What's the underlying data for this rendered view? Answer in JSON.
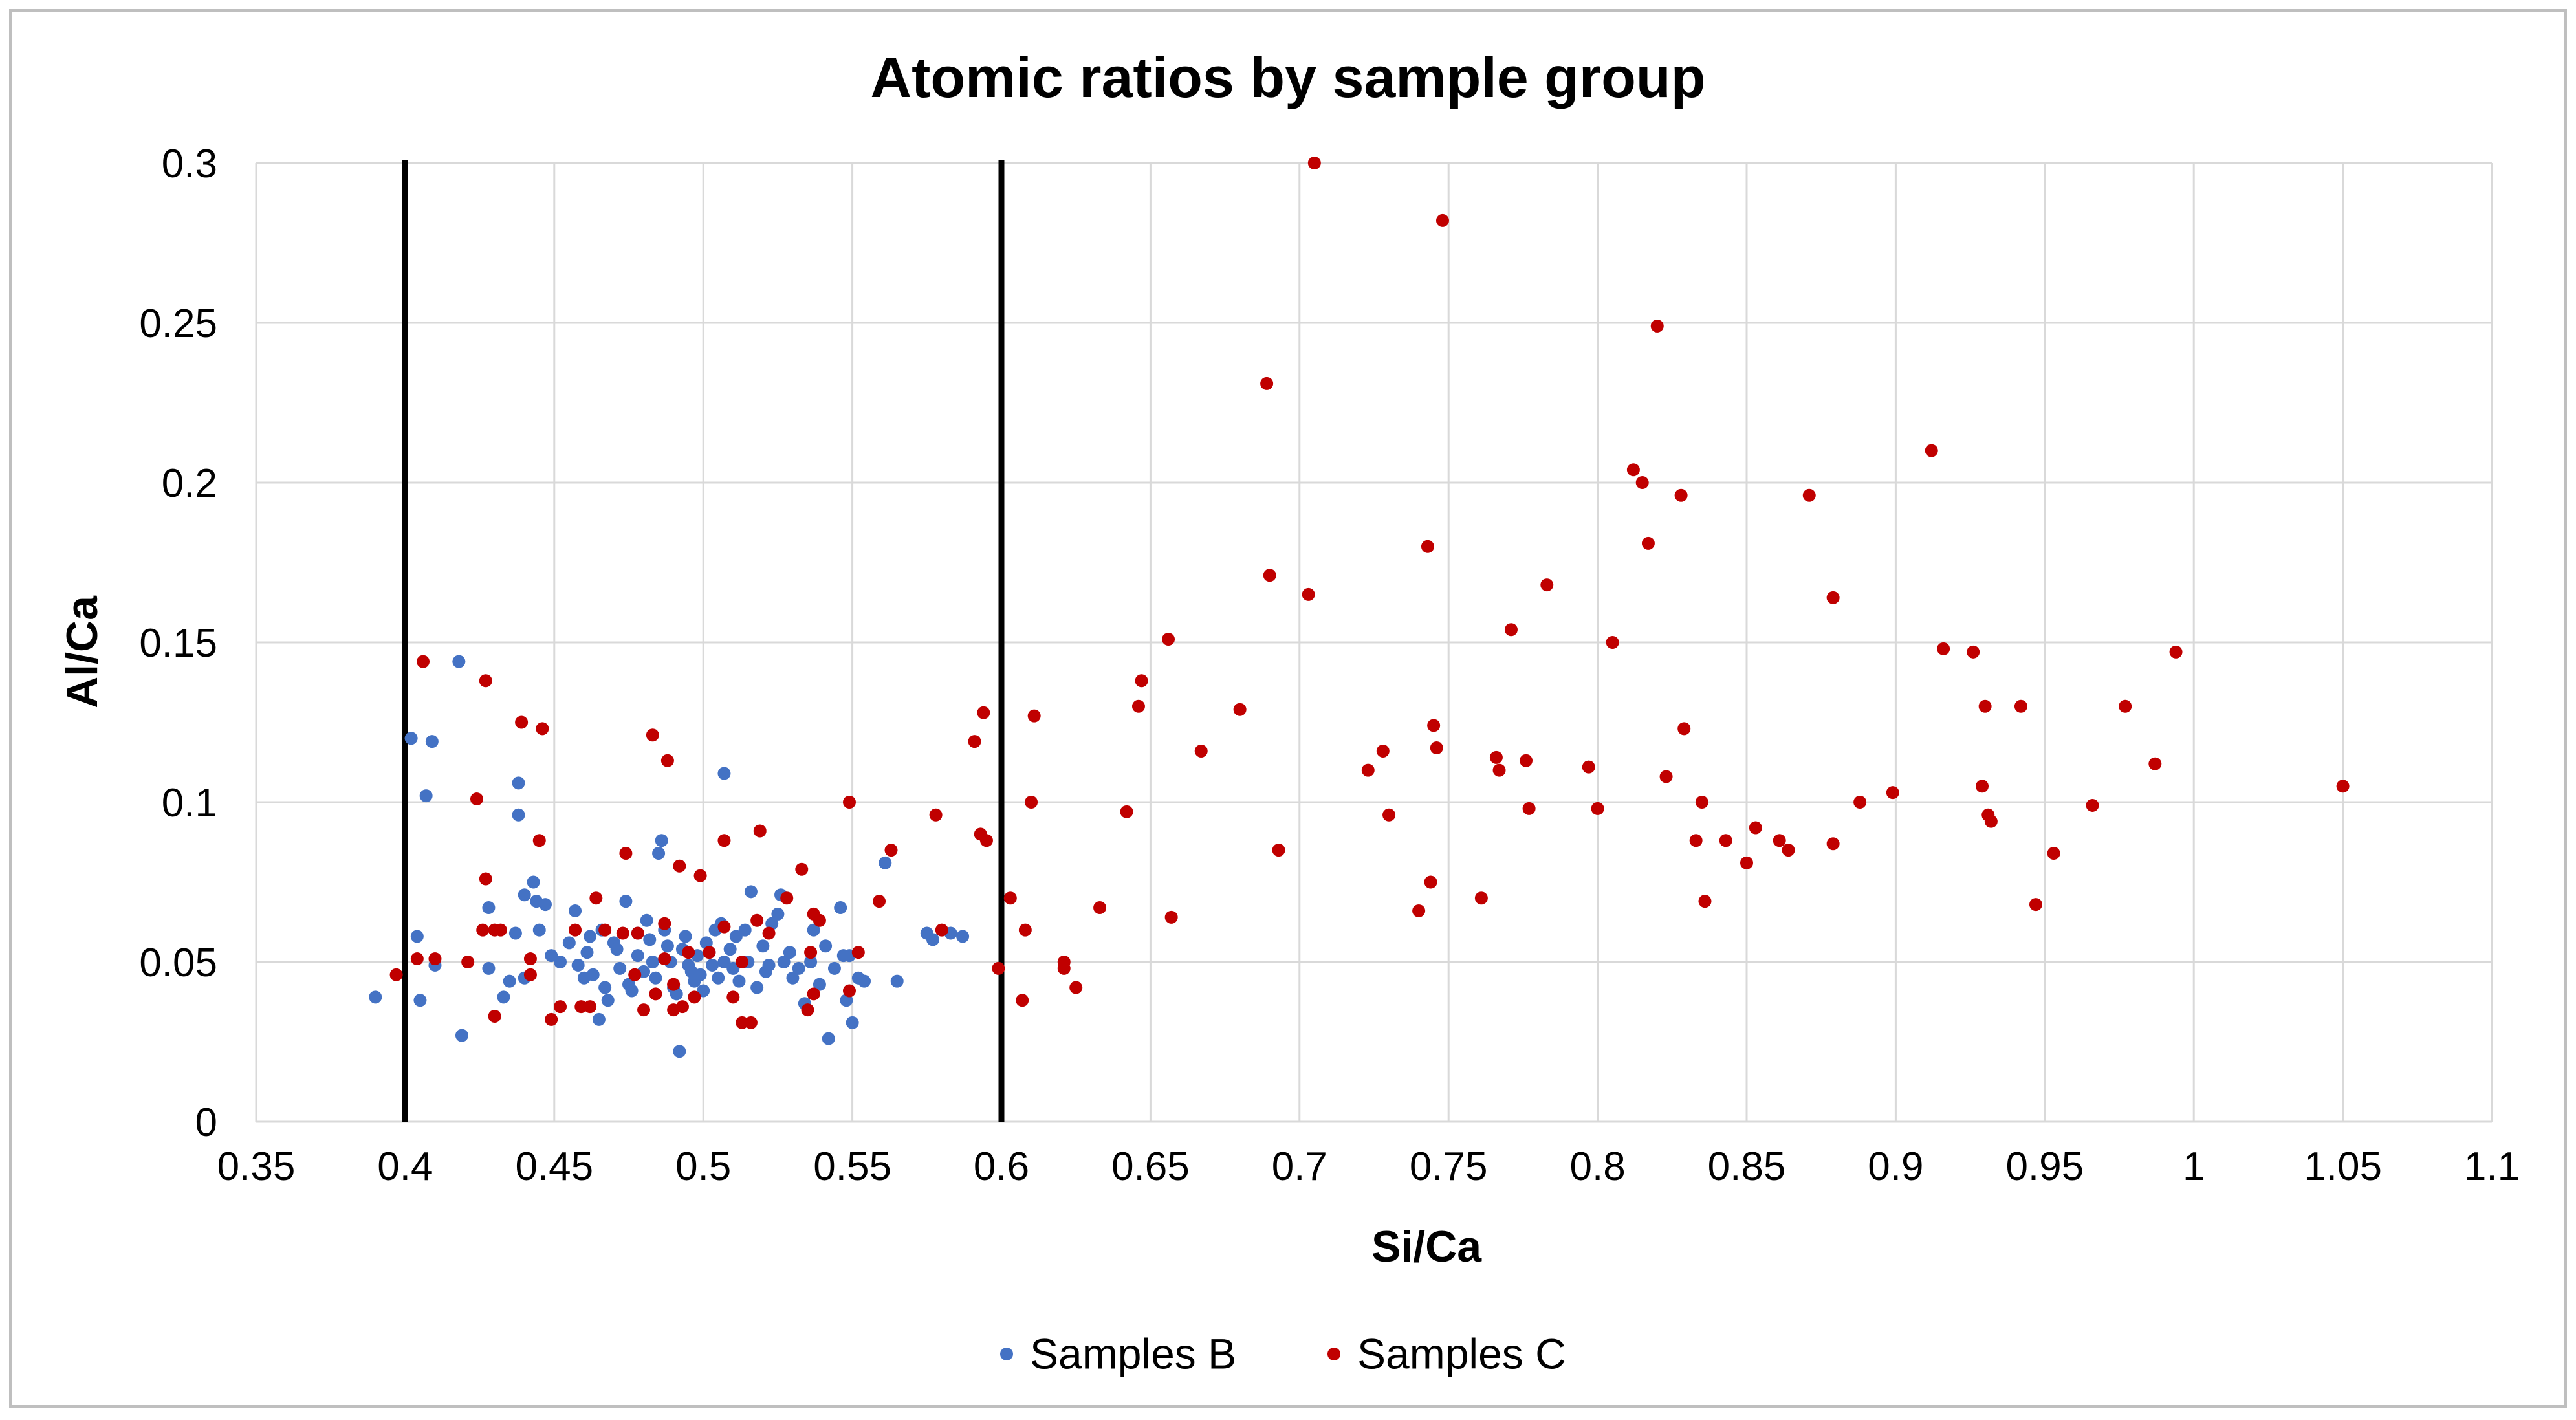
{
  "chart_data": {
    "type": "scatter",
    "title": "Atomic ratios by sample group",
    "xlabel": "Si/Ca",
    "ylabel": "Al/Ca",
    "xlim": [
      0.35,
      1.1
    ],
    "ylim": [
      0,
      0.3
    ],
    "x_ticks": [
      "0.35",
      "0.4",
      "0.45",
      "0.5",
      "0.55",
      "0.6",
      "0.65",
      "0.7",
      "0.75",
      "0.8",
      "0.85",
      "0.9",
      "0.95",
      "1",
      "1.05",
      "1.1"
    ],
    "x_tick_values": [
      0.35,
      0.4,
      0.45,
      0.5,
      0.55,
      0.6,
      0.65,
      0.7,
      0.75,
      0.8,
      0.85,
      0.9,
      0.95,
      1,
      1.05,
      1.1
    ],
    "y_ticks": [
      "0",
      "0.05",
      "0.1",
      "0.15",
      "0.2",
      "0.25",
      "0.3"
    ],
    "y_tick_values": [
      0,
      0.05,
      0.1,
      0.15,
      0.2,
      0.25,
      0.3
    ],
    "grid": true,
    "legend_position": "bottom",
    "reference_lines_x": [
      0.4,
      0.6
    ],
    "series": [
      {
        "name": "Samples B",
        "color": "#4472C4",
        "points": [
          [
            0.39,
            0.039
          ],
          [
            0.402,
            0.12
          ],
          [
            0.404,
            0.058
          ],
          [
            0.405,
            0.038
          ],
          [
            0.407,
            0.102
          ],
          [
            0.409,
            0.119
          ],
          [
            0.41,
            0.049
          ],
          [
            0.418,
            0.144
          ],
          [
            0.419,
            0.027
          ],
          [
            0.428,
            0.067
          ],
          [
            0.428,
            0.048
          ],
          [
            0.433,
            0.039
          ],
          [
            0.435,
            0.044
          ],
          [
            0.437,
            0.059
          ],
          [
            0.438,
            0.106
          ],
          [
            0.438,
            0.096
          ],
          [
            0.44,
            0.071
          ],
          [
            0.44,
            0.045
          ],
          [
            0.443,
            0.075
          ],
          [
            0.444,
            0.069
          ],
          [
            0.445,
            0.06
          ],
          [
            0.447,
            0.068
          ],
          [
            0.449,
            0.052
          ],
          [
            0.452,
            0.05
          ],
          [
            0.455,
            0.056
          ],
          [
            0.457,
            0.066
          ],
          [
            0.458,
            0.049
          ],
          [
            0.46,
            0.045
          ],
          [
            0.461,
            0.053
          ],
          [
            0.462,
            0.058
          ],
          [
            0.463,
            0.046
          ],
          [
            0.465,
            0.032
          ],
          [
            0.466,
            0.06
          ],
          [
            0.467,
            0.042
          ],
          [
            0.468,
            0.038
          ],
          [
            0.47,
            0.056
          ],
          [
            0.471,
            0.054
          ],
          [
            0.472,
            0.048
          ],
          [
            0.474,
            0.069
          ],
          [
            0.475,
            0.043
          ],
          [
            0.476,
            0.041
          ],
          [
            0.478,
            0.059
          ],
          [
            0.478,
            0.052
          ],
          [
            0.48,
            0.047
          ],
          [
            0.481,
            0.063
          ],
          [
            0.482,
            0.057
          ],
          [
            0.483,
            0.05
          ],
          [
            0.484,
            0.045
          ],
          [
            0.485,
            0.084
          ],
          [
            0.486,
            0.088
          ],
          [
            0.487,
            0.06
          ],
          [
            0.488,
            0.055
          ],
          [
            0.489,
            0.05
          ],
          [
            0.49,
            0.042
          ],
          [
            0.491,
            0.04
          ],
          [
            0.492,
            0.022
          ],
          [
            0.493,
            0.054
          ],
          [
            0.494,
            0.058
          ],
          [
            0.495,
            0.049
          ],
          [
            0.496,
            0.047
          ],
          [
            0.497,
            0.044
          ],
          [
            0.498,
            0.052
          ],
          [
            0.499,
            0.046
          ],
          [
            0.5,
            0.041
          ],
          [
            0.501,
            0.056
          ],
          [
            0.502,
            0.053
          ],
          [
            0.503,
            0.049
          ],
          [
            0.504,
            0.06
          ],
          [
            0.505,
            0.045
          ],
          [
            0.506,
            0.062
          ],
          [
            0.507,
            0.109
          ],
          [
            0.507,
            0.05
          ],
          [
            0.509,
            0.054
          ],
          [
            0.51,
            0.048
          ],
          [
            0.511,
            0.058
          ],
          [
            0.512,
            0.044
          ],
          [
            0.514,
            0.06
          ],
          [
            0.515,
            0.05
          ],
          [
            0.516,
            0.072
          ],
          [
            0.518,
            0.042
          ],
          [
            0.52,
            0.055
          ],
          [
            0.521,
            0.047
          ],
          [
            0.522,
            0.049
          ],
          [
            0.523,
            0.062
          ],
          [
            0.525,
            0.065
          ],
          [
            0.526,
            0.071
          ],
          [
            0.527,
            0.05
          ],
          [
            0.529,
            0.053
          ],
          [
            0.53,
            0.045
          ],
          [
            0.532,
            0.048
          ],
          [
            0.534,
            0.037
          ],
          [
            0.536,
            0.05
          ],
          [
            0.537,
            0.06
          ],
          [
            0.539,
            0.043
          ],
          [
            0.541,
            0.055
          ],
          [
            0.542,
            0.026
          ],
          [
            0.544,
            0.048
          ],
          [
            0.546,
            0.067
          ],
          [
            0.547,
            0.052
          ],
          [
            0.548,
            0.038
          ],
          [
            0.549,
            0.052
          ],
          [
            0.55,
            0.031
          ],
          [
            0.552,
            0.045
          ],
          [
            0.554,
            0.044
          ],
          [
            0.561,
            0.081
          ],
          [
            0.565,
            0.044
          ],
          [
            0.575,
            0.059
          ],
          [
            0.577,
            0.057
          ],
          [
            0.583,
            0.059
          ],
          [
            0.587,
            0.058
          ]
        ]
      },
      {
        "name": "Samples C",
        "color": "#C00000",
        "points": [
          [
            0.397,
            0.046
          ],
          [
            0.404,
            0.051
          ],
          [
            0.406,
            0.144
          ],
          [
            0.41,
            0.051
          ],
          [
            0.421,
            0.05
          ],
          [
            0.424,
            0.101
          ],
          [
            0.426,
            0.06
          ],
          [
            0.427,
            0.076
          ],
          [
            0.427,
            0.138
          ],
          [
            0.43,
            0.06
          ],
          [
            0.43,
            0.033
          ],
          [
            0.432,
            0.06
          ],
          [
            0.439,
            0.125
          ],
          [
            0.442,
            0.046
          ],
          [
            0.442,
            0.051
          ],
          [
            0.445,
            0.088
          ],
          [
            0.446,
            0.123
          ],
          [
            0.449,
            0.032
          ],
          [
            0.452,
            0.036
          ],
          [
            0.457,
            0.06
          ],
          [
            0.459,
            0.036
          ],
          [
            0.462,
            0.036
          ],
          [
            0.464,
            0.07
          ],
          [
            0.467,
            0.06
          ],
          [
            0.473,
            0.059
          ],
          [
            0.474,
            0.084
          ],
          [
            0.477,
            0.046
          ],
          [
            0.478,
            0.059
          ],
          [
            0.48,
            0.035
          ],
          [
            0.483,
            0.121
          ],
          [
            0.484,
            0.04
          ],
          [
            0.487,
            0.062
          ],
          [
            0.487,
            0.051
          ],
          [
            0.488,
            0.113
          ],
          [
            0.49,
            0.043
          ],
          [
            0.49,
            0.035
          ],
          [
            0.492,
            0.08
          ],
          [
            0.493,
            0.036
          ],
          [
            0.495,
            0.053
          ],
          [
            0.497,
            0.039
          ],
          [
            0.499,
            0.077
          ],
          [
            0.502,
            0.053
          ],
          [
            0.507,
            0.088
          ],
          [
            0.507,
            0.061
          ],
          [
            0.51,
            0.039
          ],
          [
            0.513,
            0.05
          ],
          [
            0.513,
            0.031
          ],
          [
            0.516,
            0.031
          ],
          [
            0.518,
            0.063
          ],
          [
            0.519,
            0.091
          ],
          [
            0.522,
            0.059
          ],
          [
            0.528,
            0.07
          ],
          [
            0.533,
            0.079
          ],
          [
            0.535,
            0.035
          ],
          [
            0.536,
            0.053
          ],
          [
            0.537,
            0.04
          ],
          [
            0.537,
            0.065
          ],
          [
            0.539,
            0.063
          ],
          [
            0.549,
            0.1
          ],
          [
            0.549,
            0.041
          ],
          [
            0.552,
            0.053
          ],
          [
            0.559,
            0.069
          ],
          [
            0.563,
            0.085
          ],
          [
            0.578,
            0.096
          ],
          [
            0.58,
            0.06
          ],
          [
            0.591,
            0.119
          ],
          [
            0.593,
            0.09
          ],
          [
            0.594,
            0.128
          ],
          [
            0.595,
            0.088
          ],
          [
            0.599,
            0.048
          ],
          [
            0.603,
            0.07
          ],
          [
            0.607,
            0.038
          ],
          [
            0.608,
            0.06
          ],
          [
            0.61,
            0.1
          ],
          [
            0.611,
            0.127
          ],
          [
            0.621,
            0.048
          ],
          [
            0.621,
            0.05
          ],
          [
            0.625,
            0.042
          ],
          [
            0.633,
            0.067
          ],
          [
            0.642,
            0.097
          ],
          [
            0.646,
            0.13
          ],
          [
            0.647,
            0.138
          ],
          [
            0.656,
            0.151
          ],
          [
            0.657,
            0.064
          ],
          [
            0.667,
            0.116
          ],
          [
            0.68,
            0.129
          ],
          [
            0.689,
            0.231
          ],
          [
            0.69,
            0.171
          ],
          [
            0.693,
            0.085
          ],
          [
            0.703,
            0.165
          ],
          [
            0.705,
            0.3
          ],
          [
            0.723,
            0.11
          ],
          [
            0.728,
            0.116
          ],
          [
            0.73,
            0.096
          ],
          [
            0.74,
            0.066
          ],
          [
            0.743,
            0.18
          ],
          [
            0.744,
            0.075
          ],
          [
            0.745,
            0.124
          ],
          [
            0.746,
            0.117
          ],
          [
            0.748,
            0.282
          ],
          [
            0.761,
            0.07
          ],
          [
            0.766,
            0.114
          ],
          [
            0.767,
            0.11
          ],
          [
            0.771,
            0.154
          ],
          [
            0.776,
            0.113
          ],
          [
            0.777,
            0.098
          ],
          [
            0.783,
            0.168
          ],
          [
            0.797,
            0.111
          ],
          [
            0.8,
            0.098
          ],
          [
            0.805,
            0.15
          ],
          [
            0.812,
            0.204
          ],
          [
            0.815,
            0.2
          ],
          [
            0.817,
            0.181
          ],
          [
            0.82,
            0.249
          ],
          [
            0.823,
            0.108
          ],
          [
            0.828,
            0.196
          ],
          [
            0.829,
            0.123
          ],
          [
            0.833,
            0.088
          ],
          [
            0.835,
            0.1
          ],
          [
            0.836,
            0.069
          ],
          [
            0.843,
            0.088
          ],
          [
            0.85,
            0.081
          ],
          [
            0.853,
            0.092
          ],
          [
            0.861,
            0.088
          ],
          [
            0.864,
            0.085
          ],
          [
            0.871,
            0.196
          ],
          [
            0.879,
            0.087
          ],
          [
            0.879,
            0.164
          ],
          [
            0.888,
            0.1
          ],
          [
            0.899,
            0.103
          ],
          [
            0.912,
            0.21
          ],
          [
            0.916,
            0.148
          ],
          [
            0.926,
            0.147
          ],
          [
            0.929,
            0.105
          ],
          [
            0.93,
            0.13
          ],
          [
            0.931,
            0.096
          ],
          [
            0.932,
            0.094
          ],
          [
            0.942,
            0.13
          ],
          [
            0.947,
            0.068
          ],
          [
            0.953,
            0.084
          ],
          [
            0.966,
            0.099
          ],
          [
            0.977,
            0.13
          ],
          [
            0.987,
            0.112
          ],
          [
            0.994,
            0.147
          ],
          [
            1.05,
            0.105
          ]
        ]
      }
    ]
  }
}
